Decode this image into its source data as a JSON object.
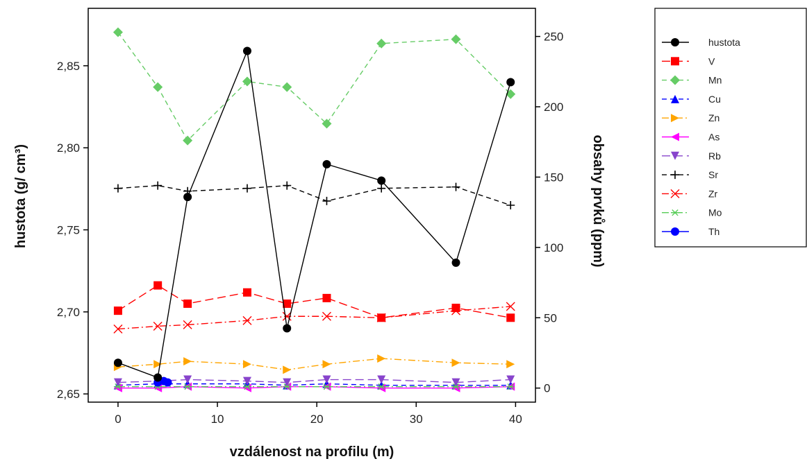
{
  "chart_data": {
    "type": "line",
    "xlabel": "vzdálenost na profilu (m)",
    "ylabel_left": "hustota (g/ cm³)",
    "ylabel_right": "obsahy prvků (ppm)",
    "xlim": [
      -3,
      42
    ],
    "xticks": [
      0,
      10,
      20,
      30,
      40
    ],
    "ylim_left": [
      2.645,
      2.885
    ],
    "yticks_left": [
      2.65,
      2.7,
      2.75,
      2.8,
      2.85
    ],
    "ytick_labels_left": [
      "2,65",
      "2,70",
      "2,75",
      "2,80",
      "2,85"
    ],
    "ylim_right": [
      -10,
      270
    ],
    "yticks_right": [
      0,
      50,
      100,
      150,
      200,
      250
    ],
    "ytick_labels_right": [
      "0",
      "50",
      "100",
      "150",
      "200",
      "250"
    ],
    "grid": false,
    "legend_position": "outside-right",
    "series": [
      {
        "name": "hustota",
        "axis": "left",
        "color": "#000000",
        "marker": "circle",
        "dash": "solid",
        "x": [
          0,
          4,
          7,
          13,
          17,
          21,
          26.5,
          34,
          39.5
        ],
        "y": [
          2.669,
          2.66,
          2.77,
          2.859,
          2.69,
          2.79,
          2.78,
          2.73,
          2.84
        ]
      },
      {
        "name": "V",
        "axis": "right",
        "color": "#ff0000",
        "marker": "square",
        "dash": "longdash",
        "x": [
          0,
          4,
          7,
          13,
          17,
          21,
          26.5,
          34,
          39.5
        ],
        "y": [
          55,
          73,
          60,
          68,
          60,
          64,
          50,
          57,
          50
        ]
      },
      {
        "name": "Mn",
        "axis": "right",
        "color": "#66cc66",
        "marker": "diamond",
        "dash": "dashed",
        "x": [
          0,
          4,
          7,
          13,
          17,
          21,
          26.5,
          34,
          39.5
        ],
        "y": [
          253,
          214,
          176,
          218,
          214,
          188,
          245,
          248,
          209
        ]
      },
      {
        "name": "Cu",
        "axis": "right",
        "color": "#0000ff",
        "marker": "triangle-up",
        "dash": "dashed",
        "x": [
          0,
          4,
          7,
          13,
          17,
          21,
          26.5,
          34,
          39.5
        ],
        "y": [
          2,
          3,
          3,
          3,
          2,
          3,
          2,
          2,
          2
        ]
      },
      {
        "name": "Zn",
        "axis": "right",
        "color": "#ffa500",
        "marker": "triangle-right",
        "dash": "dashdot",
        "x": [
          0,
          4,
          7,
          13,
          17,
          21,
          26.5,
          34,
          39.5
        ],
        "y": [
          15,
          17,
          19,
          17,
          13,
          17,
          21,
          18,
          17
        ]
      },
      {
        "name": "As",
        "axis": "right",
        "color": "#ff00ff",
        "marker": "triangle-left",
        "dash": "solid",
        "x": [
          0,
          4,
          7,
          13,
          17,
          21,
          26.5,
          34,
          39.5
        ],
        "y": [
          0,
          0,
          1,
          0,
          1,
          1,
          0,
          0,
          1
        ]
      },
      {
        "name": "Rb",
        "axis": "right",
        "color": "#8844cc",
        "marker": "triangle-down",
        "dash": "longdash",
        "x": [
          0,
          4,
          7,
          13,
          17,
          21,
          26.5,
          34,
          39.5
        ],
        "y": [
          4,
          5,
          6,
          5,
          4,
          6,
          6,
          4,
          6
        ]
      },
      {
        "name": "Sr",
        "axis": "right",
        "color": "#000000",
        "marker": "plus",
        "dash": "dashed",
        "x": [
          0,
          4,
          7,
          13,
          17,
          21,
          26.5,
          34,
          39.5
        ],
        "y": [
          142,
          144,
          140,
          142,
          144,
          133,
          142,
          143,
          130
        ]
      },
      {
        "name": "Zr",
        "axis": "right",
        "color": "#ff0000",
        "marker": "x",
        "dash": "dashdot",
        "x": [
          0,
          4,
          7,
          13,
          17,
          21,
          26.5,
          34,
          39.5
        ],
        "y": [
          42,
          44,
          45,
          48,
          51,
          51,
          50,
          55,
          58
        ]
      },
      {
        "name": "Mo",
        "axis": "right",
        "color": "#55cc55",
        "marker": "asterisk",
        "dash": "dashdot",
        "x": [
          0,
          4,
          7,
          13,
          17,
          21,
          26.5,
          34,
          39.5
        ],
        "y": [
          1,
          1,
          1,
          1,
          1,
          1,
          1,
          1,
          1
        ]
      },
      {
        "name": "Th",
        "axis": "right",
        "color": "#0000ff",
        "marker": "circle",
        "dash": "solid",
        "x": [
          4,
          4.6,
          5
        ],
        "y": [
          4,
          5,
          4
        ]
      }
    ]
  }
}
